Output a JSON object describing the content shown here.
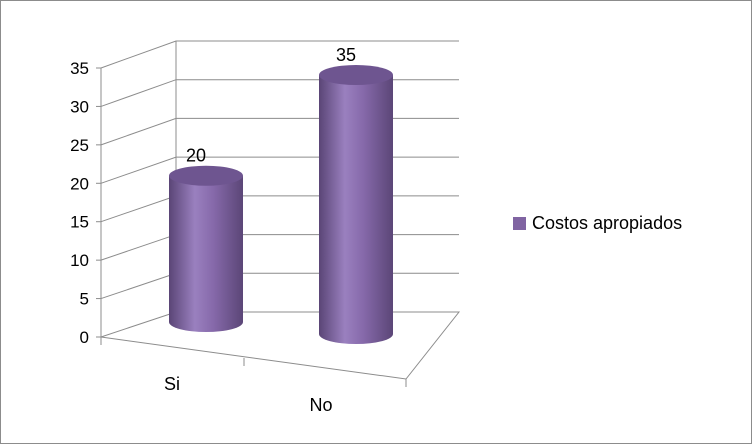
{
  "chart_data": {
    "type": "bar",
    "style": "3d-cylinder",
    "categories": [
      "Si",
      "No"
    ],
    "series": [
      {
        "name": "Costos apropiados",
        "values": [
          20,
          35
        ],
        "color": "#8064A2"
      }
    ],
    "ylim": [
      0,
      35
    ],
    "yticks": [
      "0",
      "5",
      "10",
      "15",
      "20",
      "25",
      "30",
      "35"
    ],
    "data_labels": [
      "20",
      "35"
    ],
    "grid": true,
    "legend_position": "right",
    "title": "",
    "xlabel": "",
    "ylabel": ""
  }
}
